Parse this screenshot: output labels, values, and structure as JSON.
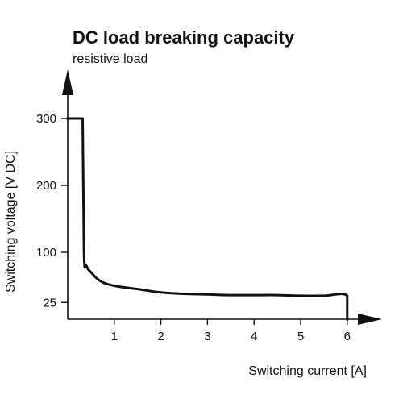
{
  "chart_data": {
    "type": "line",
    "title": "DC load breaking capacity",
    "subtitle": "resistive load",
    "xlabel": "Switching current [A]",
    "ylabel": "Switching voltage [V DC]",
    "x_ticks": [
      1,
      2,
      3,
      4,
      5,
      6
    ],
    "y_ticks": [
      25,
      100,
      200,
      300
    ],
    "xlim": [
      0,
      6.6
    ],
    "ylim": [
      0,
      380
    ],
    "grid": false,
    "series": [
      {
        "x": [
          0,
          0.32,
          0.35,
          0.4,
          0.5,
          0.7,
          1.0,
          1.5,
          2.0,
          2.5,
          3.0,
          3.5,
          4.0,
          4.5,
          5.0,
          5.5,
          6.0,
          6.0
        ],
        "values": [
          300,
          300,
          100,
          80,
          70,
          57,
          50,
          45,
          40,
          38,
          37,
          36,
          36,
          36,
          35,
          35,
          35,
          0
        ]
      }
    ],
    "colors": {
      "line": "#111111",
      "axis": "#111111"
    }
  }
}
